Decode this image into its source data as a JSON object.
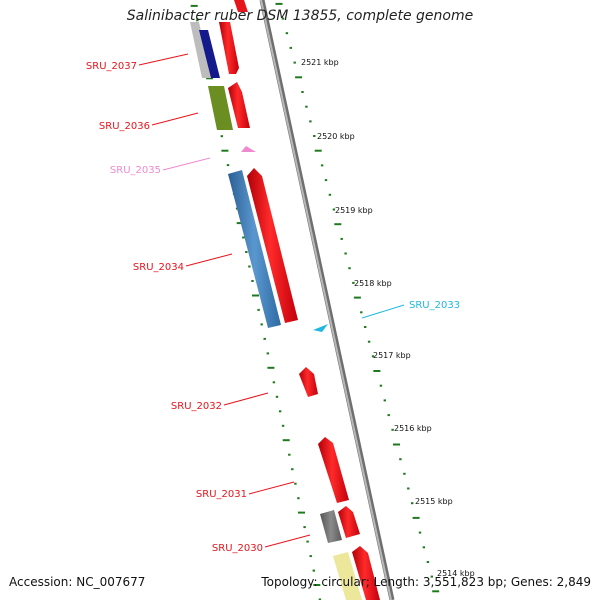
{
  "title": "Salinibacter ruber DSM 13855, complete genome",
  "footer": {
    "accession": "Accession: NC_007677",
    "stats": "Topology: circular; Length: 3,551,823 bp; Genes: 2,849"
  },
  "colors": {
    "backbone": "#8a8a8a",
    "tick": "#1f7a1f",
    "red": "#e8141c",
    "blue": "#3b79b6",
    "navy": "#141a8c",
    "olive": "#6b8e23",
    "pink": "#f08ad0",
    "cyan": "#20b8e0",
    "grey": "#6e6e6e",
    "yellow": "#ece79a"
  },
  "scale_labels": [
    "2521 kbp",
    "2520 kbp",
    "2519 kbp",
    "2518 kbp",
    "2517 kbp",
    "2516 kbp",
    "2515 kbp",
    "2514 kbp"
  ],
  "gene_labels": [
    {
      "name": "SRU_2037",
      "color": "red"
    },
    {
      "name": "SRU_2036",
      "color": "red"
    },
    {
      "name": "SRU_2035",
      "color": "pink"
    },
    {
      "name": "SRU_2034",
      "color": "red"
    },
    {
      "name": "SRU_2033",
      "color": "cyan"
    },
    {
      "name": "SRU_2032",
      "color": "red"
    },
    {
      "name": "SRU_2031",
      "color": "red"
    },
    {
      "name": "SRU_2030",
      "color": "red"
    }
  ]
}
